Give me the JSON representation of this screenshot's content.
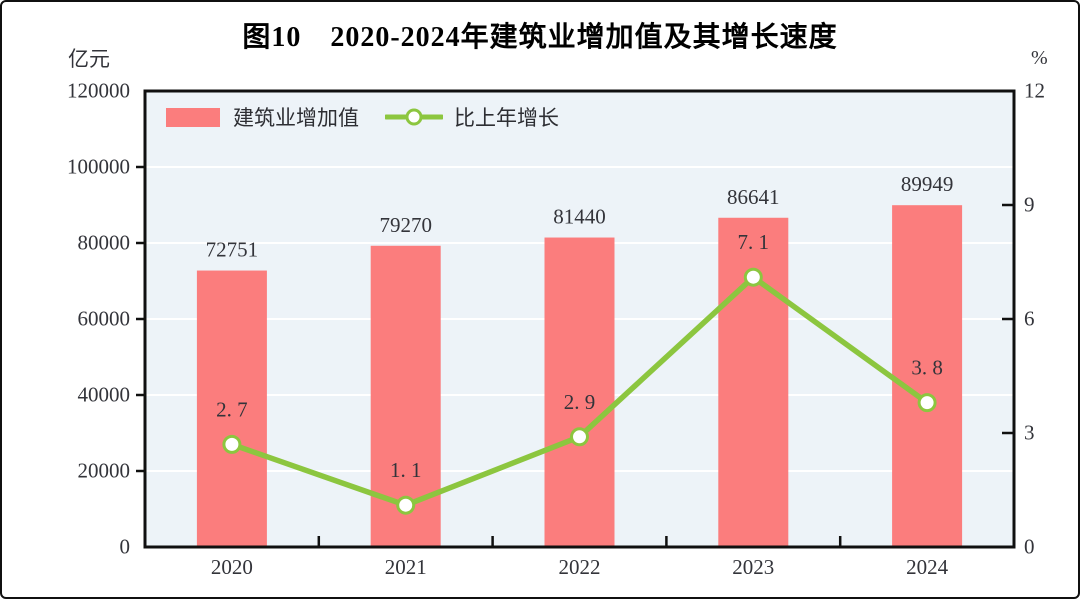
{
  "figure": {
    "title": "图10　2020-2024年建筑业增加值及其增长速度"
  },
  "legend": [
    {
      "type": "bar",
      "label": "建筑业增加值",
      "color": "#FB7D7D"
    },
    {
      "type": "line",
      "label": "比上年增长",
      "color": "#8CC63F"
    }
  ],
  "chart_data": {
    "type": "combo",
    "title": "图10　2020-2024年建筑业增加值及其增长速度",
    "categories": [
      "2020",
      "2021",
      "2022",
      "2023",
      "2024"
    ],
    "series": [
      {
        "name": "建筑业增加值",
        "type": "bar",
        "axis": "left",
        "unit": "亿元",
        "color": "#FB7D7D",
        "values": [
          72751,
          79270,
          81440,
          86641,
          89949
        ],
        "labels": [
          "72751",
          "79270",
          "81440",
          "86641",
          "89949"
        ]
      },
      {
        "name": "比上年增长",
        "type": "line",
        "axis": "right",
        "unit": "%",
        "color": "#8CC63F",
        "marker": "circle-white-fill",
        "values": [
          2.7,
          1.1,
          2.9,
          7.1,
          3.8
        ],
        "labels": [
          "2. 7",
          "1. 1",
          "2. 9",
          "7. 1",
          "3. 8"
        ]
      }
    ],
    "y_left": {
      "label": "亿元",
      "range": [
        0,
        120000
      ],
      "ticks": [
        0,
        20000,
        40000,
        60000,
        80000,
        100000,
        120000
      ]
    },
    "y_right": {
      "label": "%",
      "range": [
        0,
        12
      ],
      "ticks": [
        0,
        3,
        6,
        9,
        12
      ]
    },
    "grid": true,
    "gridline_color": "#ffffff",
    "plot_background": "#EDF3F8",
    "axis_color": "#101010",
    "text_color": "#33343a",
    "legend_position": "top-left-inside"
  }
}
